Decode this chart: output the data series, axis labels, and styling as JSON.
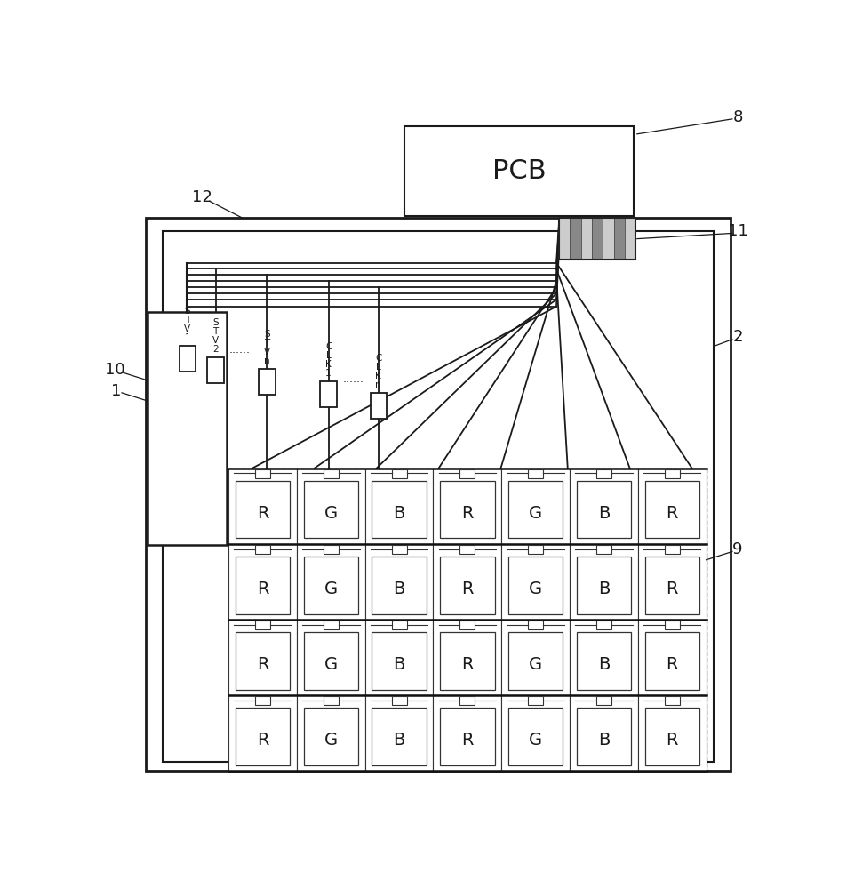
{
  "bg": "#ffffff",
  "lc": "#1a1a1a",
  "dark_lc": "#111111",
  "gray1": "#cccccc",
  "gray2": "#888888",
  "pcb_text": "PCB",
  "pixel_labels": [
    "R",
    "G",
    "B",
    "R",
    "G",
    "B",
    "R"
  ],
  "n_rows": 4,
  "n_cols": 7
}
